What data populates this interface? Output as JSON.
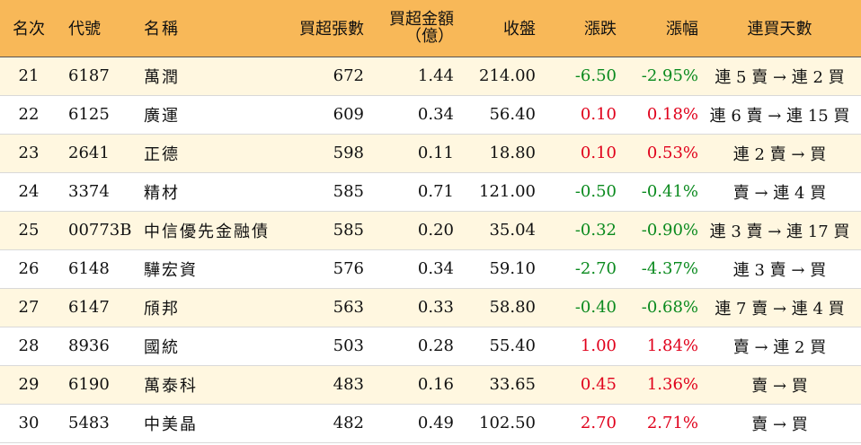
{
  "headers": {
    "rank": "名次",
    "code": "代號",
    "name": "名稱",
    "shares": "買超張數",
    "amount": "買超金額（億）",
    "close": "收盤",
    "change": "漲跌",
    "pct": "漲幅",
    "streak": "連買天數"
  },
  "colors": {
    "header_bg": "#f8b858",
    "stripe": "#fff7e0",
    "up": "#e0001b",
    "down": "#0a8a1e"
  },
  "rows": [
    {
      "rank": "21",
      "code": "6187",
      "name": "萬潤",
      "shares": "672",
      "amount": "1.44",
      "close": "214.00",
      "change": "-6.50",
      "pct": "-2.95%",
      "streak": "連 5 賣 → 連 2 買",
      "dir": "down"
    },
    {
      "rank": "22",
      "code": "6125",
      "name": "廣運",
      "shares": "609",
      "amount": "0.34",
      "close": "56.40",
      "change": "0.10",
      "pct": "0.18%",
      "streak": "連 6 賣 → 連 15 買",
      "dir": "up"
    },
    {
      "rank": "23",
      "code": "2641",
      "name": "正德",
      "shares": "598",
      "amount": "0.11",
      "close": "18.80",
      "change": "0.10",
      "pct": "0.53%",
      "streak": "連 2 賣 → 買",
      "dir": "up"
    },
    {
      "rank": "24",
      "code": "3374",
      "name": "精材",
      "shares": "585",
      "amount": "0.71",
      "close": "121.00",
      "change": "-0.50",
      "pct": "-0.41%",
      "streak": "賣 → 連 4 買",
      "dir": "down"
    },
    {
      "rank": "25",
      "code": "00773B",
      "name": "中信優先金融債",
      "shares": "585",
      "amount": "0.20",
      "close": "35.04",
      "change": "-0.32",
      "pct": "-0.90%",
      "streak": "連 3 賣 → 連 17 買",
      "dir": "down"
    },
    {
      "rank": "26",
      "code": "6148",
      "name": "驊宏資",
      "shares": "576",
      "amount": "0.34",
      "close": "59.10",
      "change": "-2.70",
      "pct": "-4.37%",
      "streak": "連 3 賣 → 買",
      "dir": "down"
    },
    {
      "rank": "27",
      "code": "6147",
      "name": "頎邦",
      "shares": "563",
      "amount": "0.33",
      "close": "58.80",
      "change": "-0.40",
      "pct": "-0.68%",
      "streak": "連 7 賣 → 連 4 買",
      "dir": "down"
    },
    {
      "rank": "28",
      "code": "8936",
      "name": "國統",
      "shares": "503",
      "amount": "0.28",
      "close": "55.40",
      "change": "1.00",
      "pct": "1.84%",
      "streak": "賣 → 連 2 買",
      "dir": "up"
    },
    {
      "rank": "29",
      "code": "6190",
      "name": "萬泰科",
      "shares": "483",
      "amount": "0.16",
      "close": "33.65",
      "change": "0.45",
      "pct": "1.36%",
      "streak": "賣 → 買",
      "dir": "up"
    },
    {
      "rank": "30",
      "code": "5483",
      "name": "中美晶",
      "shares": "482",
      "amount": "0.49",
      "close": "102.50",
      "change": "2.70",
      "pct": "2.71%",
      "streak": "賣 → 買",
      "dir": "up"
    }
  ]
}
